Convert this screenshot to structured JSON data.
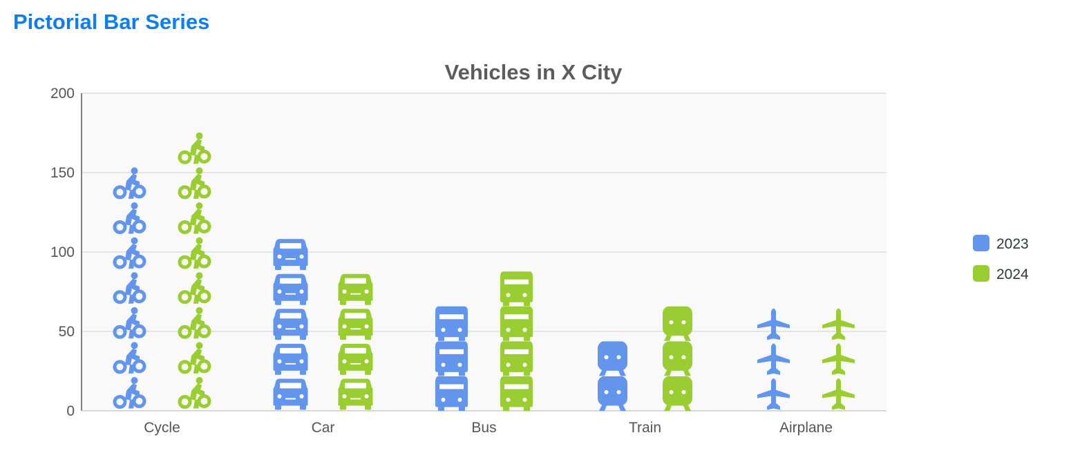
{
  "page": {
    "heading": "Pictorial Bar Series"
  },
  "chart_data": {
    "type": "bar",
    "subtype": "pictorial",
    "title": "Vehicles in X City",
    "xlabel": "",
    "ylabel": "",
    "categories": [
      "Cycle",
      "Car",
      "Bus",
      "Train",
      "Airplane"
    ],
    "icons": [
      "cycle-icon",
      "car-icon",
      "bus-icon",
      "train-icon",
      "airplane-icon"
    ],
    "unit_per_icon": 22,
    "series": [
      {
        "name": "2023",
        "color": "#6495ed",
        "values": [
          150,
          110,
          60,
          40,
          60
        ]
      },
      {
        "name": "2024",
        "color": "#9acd32",
        "values": [
          170,
          80,
          80,
          60,
          60
        ]
      }
    ],
    "ylim": [
      0,
      200
    ],
    "yticks": [
      0,
      50,
      100,
      150,
      200
    ],
    "grid": true,
    "plot_background": "#f9f9f9",
    "legend_position": "right"
  }
}
